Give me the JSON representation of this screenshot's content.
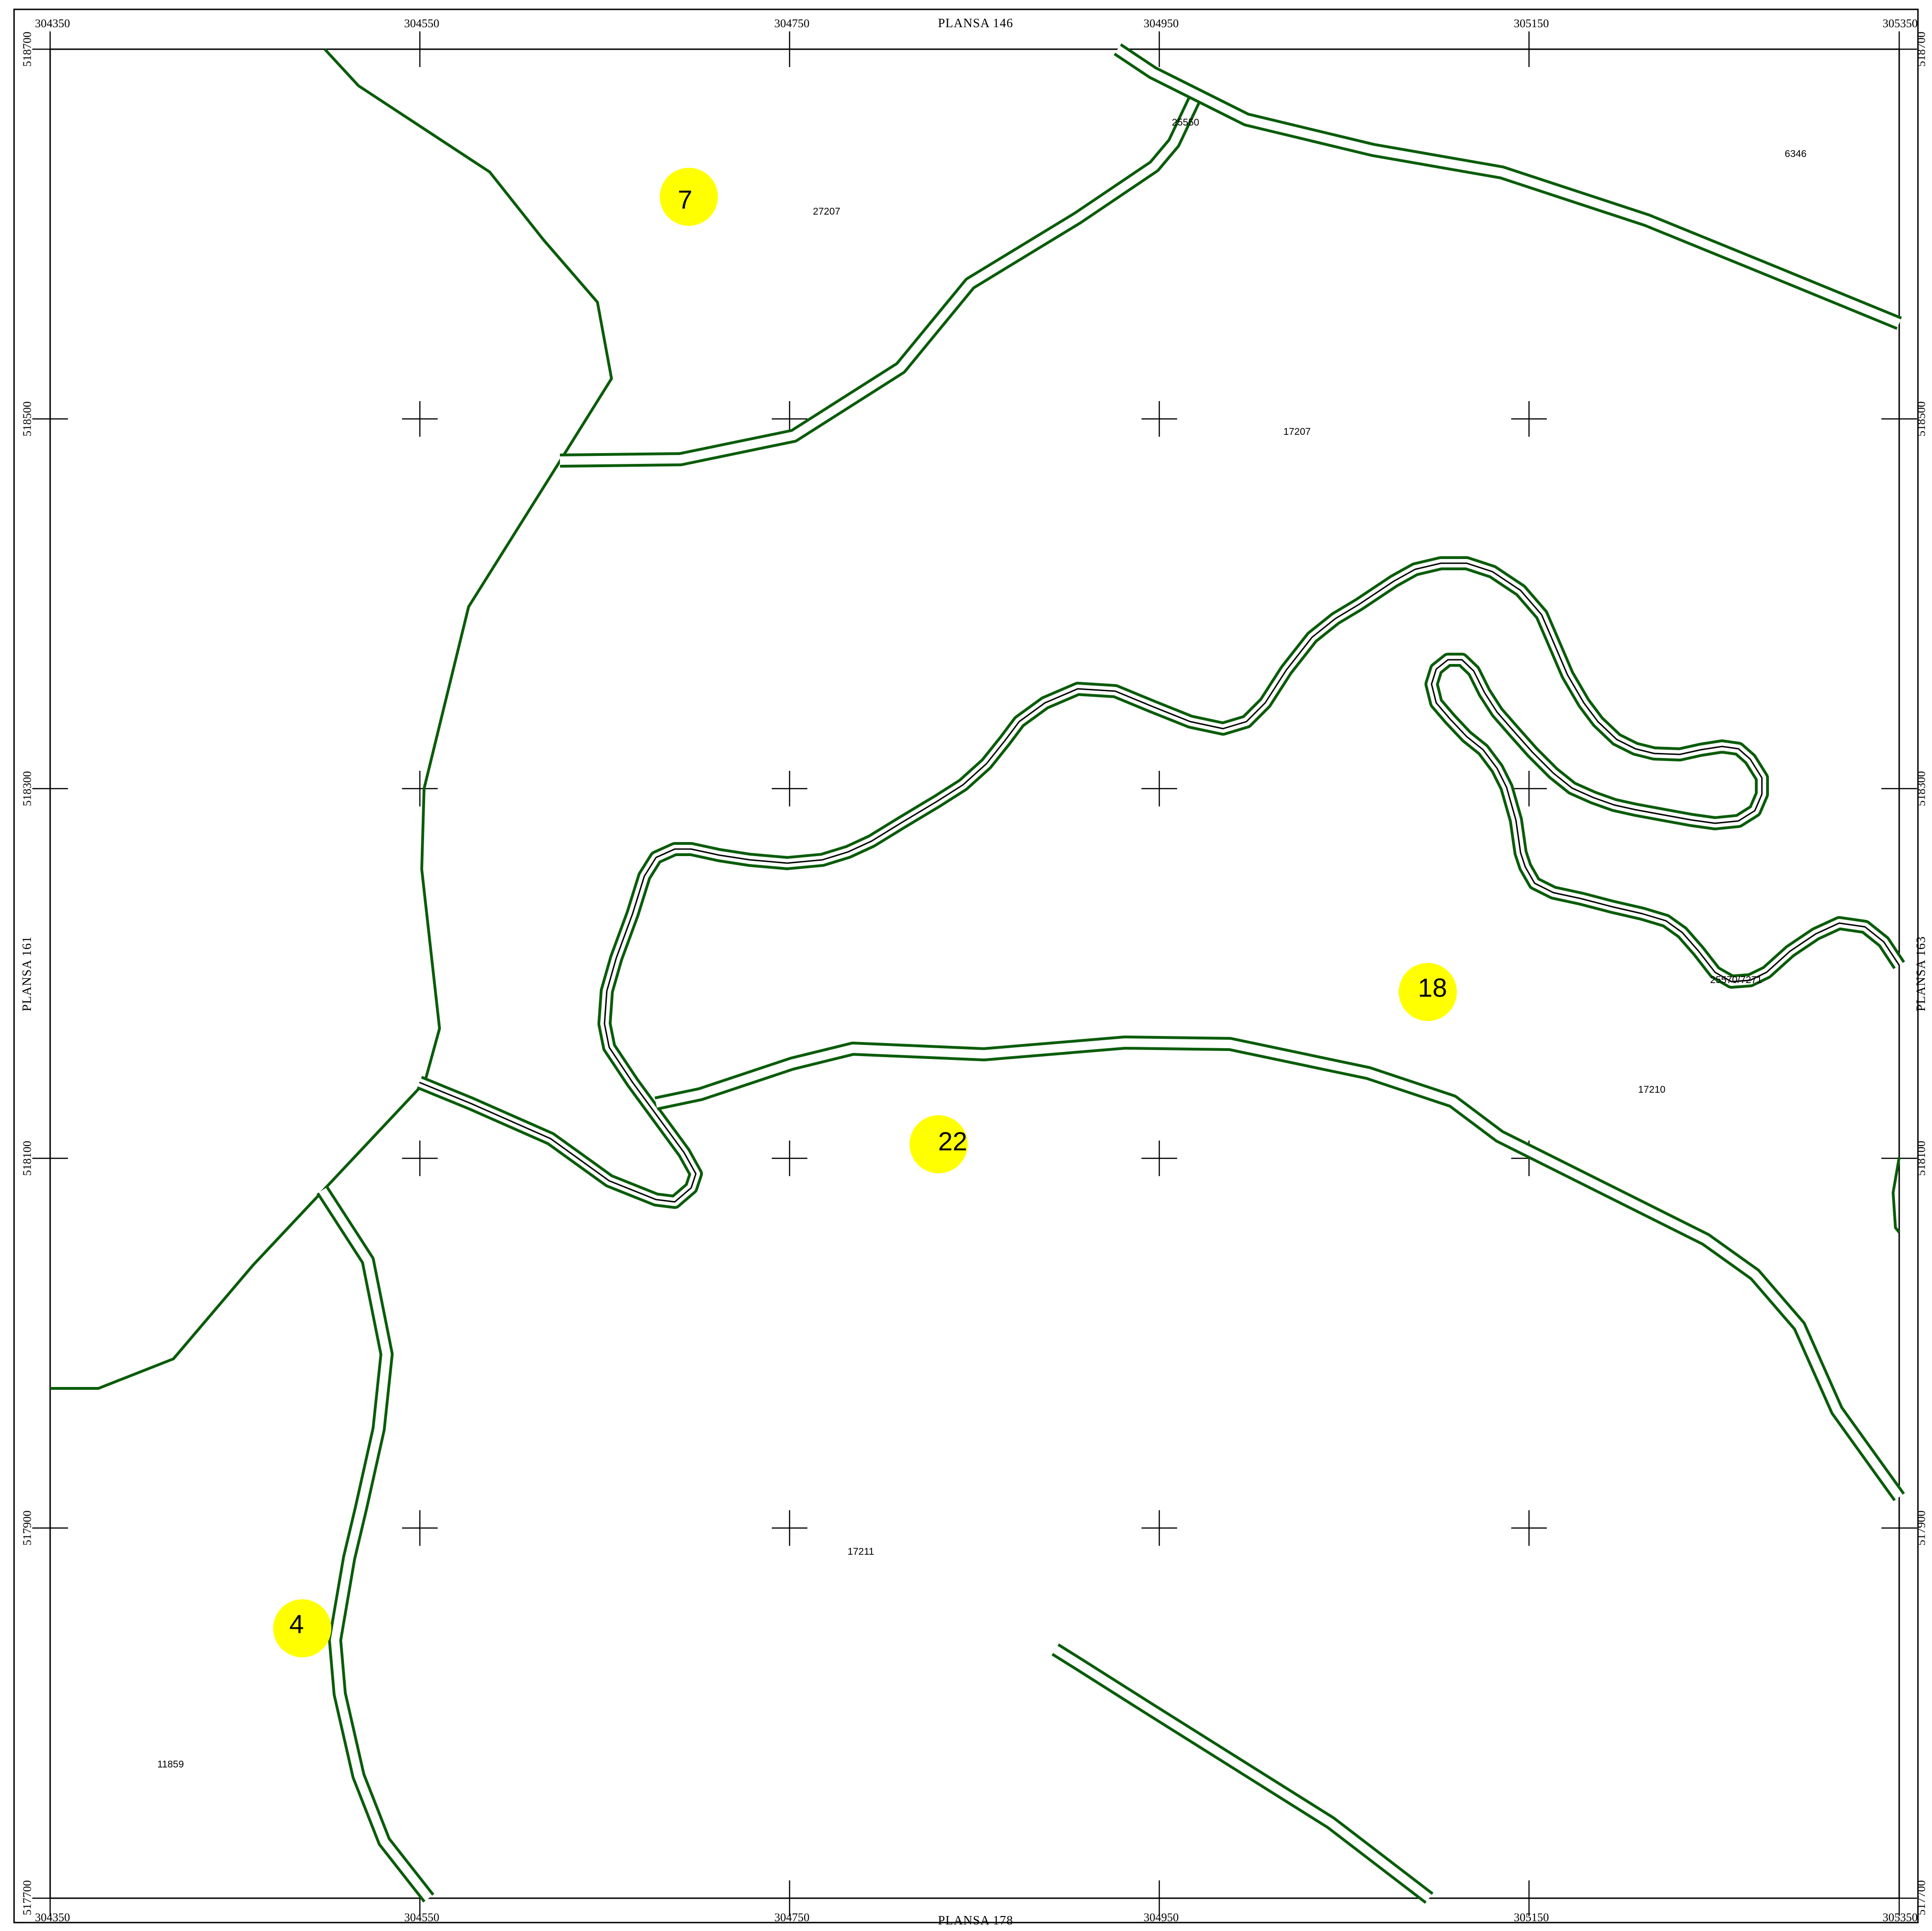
{
  "map": {
    "sheets": {
      "top": "PLANSA  146",
      "bottom": "PLANSA  178",
      "left": "PLANSA  161",
      "right": "PLANSA  163"
    },
    "x_ticks": [
      "304350",
      "304550",
      "304750",
      "304950",
      "305150",
      "305350"
    ],
    "y_ticks": [
      "518700",
      "518500",
      "518300",
      "518100",
      "517900",
      "517700"
    ],
    "parcels": [
      "25550",
      "6346",
      "27207",
      "17207",
      "25570/7271",
      "17210",
      "17211",
      "11859"
    ],
    "zones": [
      "7",
      "18",
      "22",
      "4"
    ],
    "colors": {
      "road": "#0a5c0a",
      "zone_marker": "#ffff00",
      "frame": "#000000"
    }
  }
}
